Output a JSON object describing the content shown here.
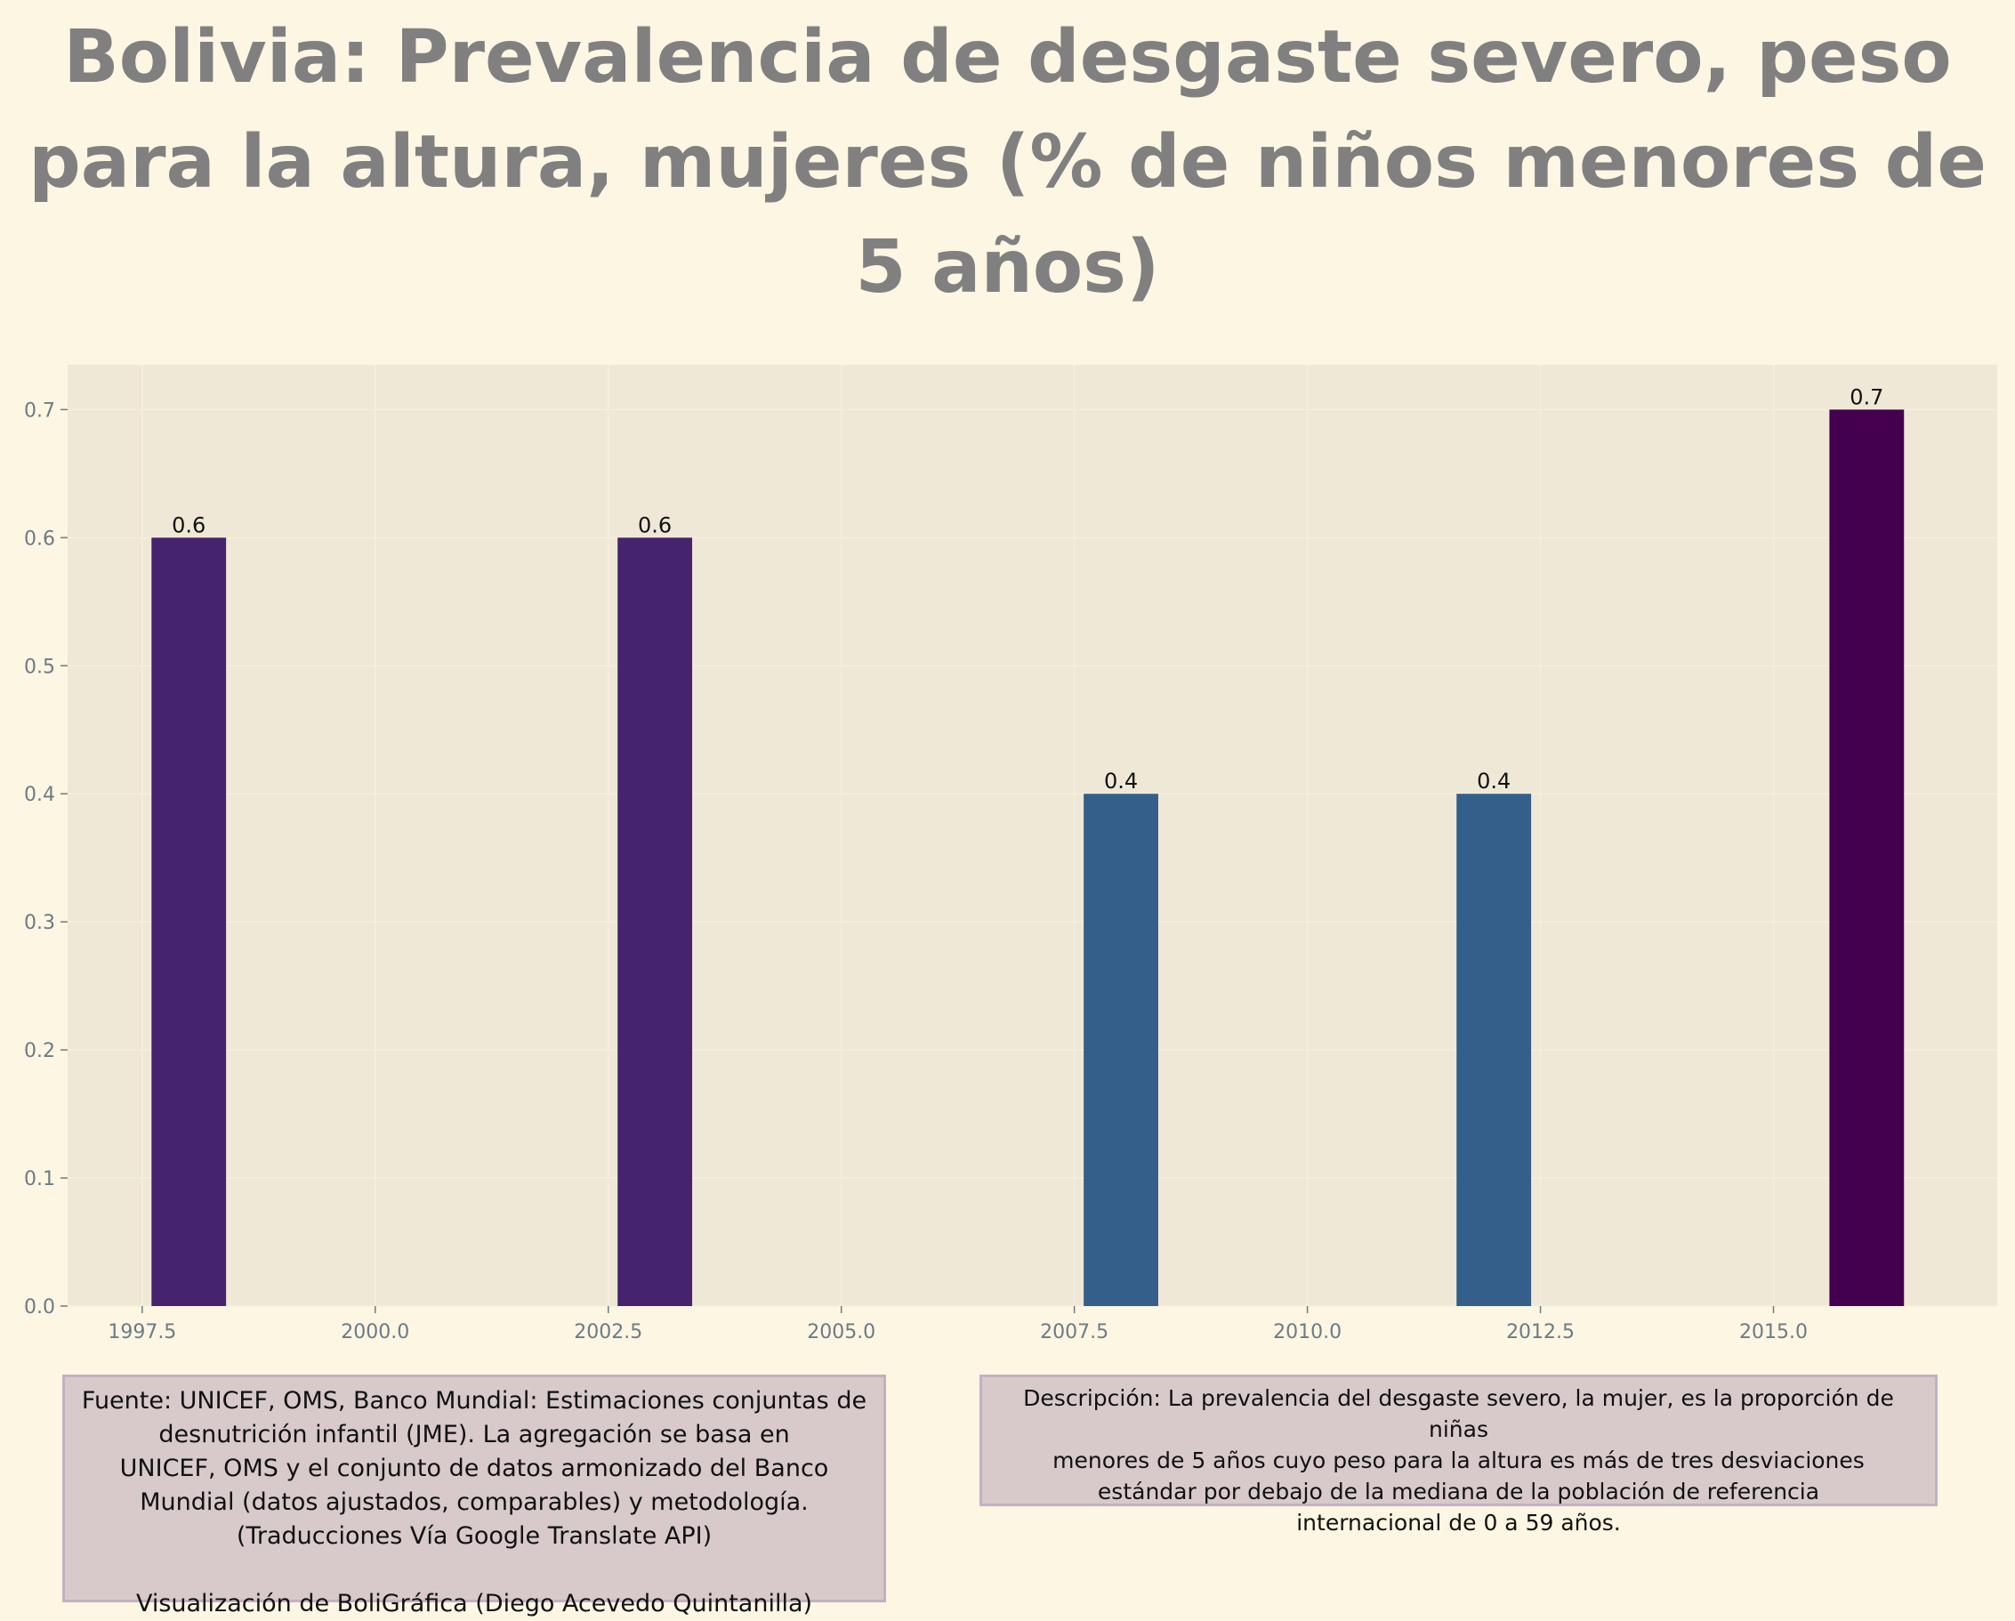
{
  "chart_data": {
    "type": "bar",
    "title": "Bolivia:  Prevalencia de desgaste severo, peso para la altura, mujeres (% de niños menores de 5 años)",
    "x": [
      1998,
      2003,
      2008,
      2012,
      2016
    ],
    "values": [
      0.6,
      0.6,
      0.4,
      0.4,
      0.7
    ],
    "data_labels": [
      "0.6",
      "0.6",
      "0.4",
      "0.4",
      "0.7"
    ],
    "bar_colors": [
      "#46236e",
      "#46236e",
      "#335f8a",
      "#335f8a",
      "#44004e"
    ],
    "xlim": [
      1996.7,
      2017.4
    ],
    "ylim": [
      0,
      0.735
    ],
    "xticks": [
      "1997.5",
      "2000.0",
      "2002.5",
      "2005.0",
      "2007.5",
      "2010.0",
      "2012.5",
      "2015.0"
    ],
    "yticks": [
      "0.0",
      "0.1",
      "0.2",
      "0.3",
      "0.4",
      "0.5",
      "0.6",
      "0.7"
    ],
    "xlabel": "",
    "ylabel": "",
    "grid": true,
    "colors": {
      "background": "#fdf6e3",
      "plot_background": "#f0e8d6",
      "title": "#808080",
      "ticks": "#6c7b85"
    }
  },
  "notes": {
    "source": "Fuente: UNICEF, OMS, Banco Mundial: Estimaciones conjuntas de\ndesnutrición infantil (JME). La agregación se basa en\nUNICEF, OMS y el conjunto de datos armonizado del Banco\nMundial (datos ajustados, comparables) y metodología.\n(Traducciones Vía Google Translate API)\n\nVisualización de BoliGráfica (Diego Acevedo Quintanilla)",
    "description": "Descripción: La prevalencia del desgaste severo, la mujer, es la proporción de niñas\nmenores de 5 años cuyo peso para la altura es más de tres desviaciones\nestándar por debajo de la mediana de la población de referencia\ninternacional de 0 a 59 años."
  }
}
